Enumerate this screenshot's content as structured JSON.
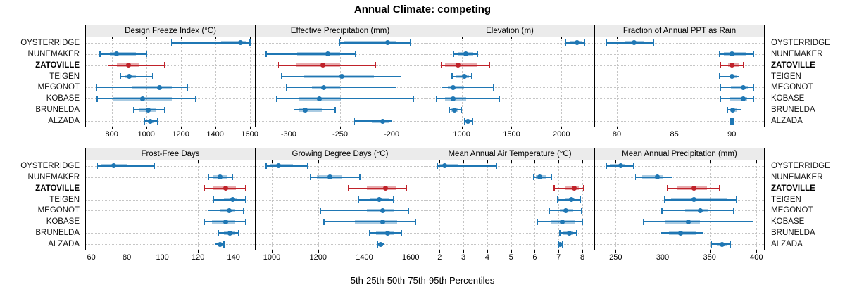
{
  "title": "Annual Climate: competing",
  "caption": "5th-25th-50th-75th-95th Percentiles",
  "highlight_site": "ZATOVILLE",
  "colors": {
    "series_blue": "#1F77B4",
    "series_red": "#C0222A",
    "band_opacity": 0.38,
    "grid": "#C6C6C6",
    "strip_bg": "#EBEBEB",
    "border": "#000000",
    "background": "#FFFFFF"
  },
  "chart_data": {
    "type": "dotplot",
    "statistic": "percentiles [5th, 25th, 50th, 75th, 95th]",
    "legend_position": "none",
    "grid": "dotted",
    "categories": [
      "OYSTERRIDGE",
      "NUNEMAKER",
      "ZATOVILLE",
      "TEIGEN",
      "MEGONOT",
      "KOBASE",
      "BRUNELDA",
      "ALZADA"
    ],
    "panels": [
      {
        "title": "Design Freeze Index (°C)",
        "row": 0,
        "col": 0,
        "xlim": [
          650,
          1630
        ],
        "ticks": [
          800,
          1000,
          1200,
          1400,
          1600
        ],
        "series": [
          {
            "site": "OYSTERRIDGE",
            "values": [
              1145,
              1435,
              1545,
              1580,
              1600
            ]
          },
          {
            "site": "NUNEMAKER",
            "values": [
              730,
              790,
              828,
              940,
              1000
            ]
          },
          {
            "site": "ZATOVILLE",
            "values": [
              777,
              831,
              898,
              961,
              1106
            ]
          },
          {
            "site": "TEIGEN",
            "values": [
              850,
              875,
              900,
              940,
              1035
            ]
          },
          {
            "site": "MEGONOT",
            "values": [
              710,
              920,
              1075,
              1150,
              1240
            ]
          },
          {
            "site": "KOBASE",
            "values": [
              715,
              810,
              980,
              1150,
              1285
            ]
          },
          {
            "site": "BRUNELDA",
            "values": [
              925,
              960,
              1010,
              1060,
              1105
            ]
          },
          {
            "site": "ALZADA",
            "values": [
              990,
              1010,
              1025,
              1040,
              1065
            ]
          }
        ]
      },
      {
        "title": "Effective Precipitation (mm)",
        "row": 0,
        "col": 1,
        "xlim": [
          -332,
          -168
        ],
        "ticks": [
          -300,
          -250,
          -200
        ],
        "series": [
          {
            "site": "OYSTERRIDGE",
            "values": [
              -251,
              -246,
              -204,
              -196,
              -182
            ]
          },
          {
            "site": "NUNEMAKER",
            "values": [
              -322,
              -292,
              -262,
              -250,
              -235
            ]
          },
          {
            "site": "ZATOVILLE",
            "values": [
              -310,
              -293,
              -267,
              -250,
              -216
            ]
          },
          {
            "site": "TEIGEN",
            "values": [
              -307,
              -285,
              -248,
              -217,
              -191
            ]
          },
          {
            "site": "MEGONOT",
            "values": [
              -302,
              -277,
              -266,
              -250,
              -196
            ]
          },
          {
            "site": "KOBASE",
            "values": [
              -312,
              -290,
              -270,
              -249,
              -179
            ]
          },
          {
            "site": "BRUNELDA",
            "values": [
              -295,
              -290,
              -284,
              -268,
              -255
            ]
          },
          {
            "site": "ALZADA",
            "values": [
              -236,
              -219,
              -209,
              -203,
              -200
            ]
          }
        ]
      },
      {
        "title": "Elevation (m)",
        "row": 0,
        "col": 2,
        "xlim": [
          635,
          2330
        ],
        "ticks": [
          1000,
          1500,
          2000
        ],
        "series": [
          {
            "site": "OYSTERRIDGE",
            "values": [
              2040,
              2080,
              2160,
              2210,
              2230
            ]
          },
          {
            "site": "NUNEMAKER",
            "values": [
              915,
              965,
              1040,
              1115,
              1160
            ]
          },
          {
            "site": "ZATOVILLE",
            "values": [
              795,
              835,
              965,
              1150,
              1275
            ]
          },
          {
            "site": "TEIGEN",
            "values": [
              900,
              940,
              1030,
              1070,
              1100
            ]
          },
          {
            "site": "MEGONOT",
            "values": [
              800,
              860,
              915,
              1025,
              1315
            ]
          },
          {
            "site": "KOBASE",
            "values": [
              745,
              835,
              915,
              1045,
              1380
            ]
          },
          {
            "site": "BRUNELDA",
            "values": [
              875,
              895,
              925,
              965,
              995
            ]
          },
          {
            "site": "ALZADA",
            "values": [
              1030,
              1045,
              1065,
              1090,
              1105
            ]
          }
        ]
      },
      {
        "title": "Fraction of Annual PPT as Rain",
        "row": 0,
        "col": 3,
        "xlim": [
          78.1,
          92.8
        ],
        "ticks": [
          80,
          85,
          90
        ],
        "series": [
          {
            "site": "OYSTERRIDGE",
            "values": [
              79.1,
              80.7,
              81.5,
              82.4,
              83.2
            ]
          },
          {
            "site": "NUNEMAKER",
            "values": [
              88.9,
              89.3,
              90.0,
              91.3,
              91.9
            ]
          },
          {
            "site": "ZATOVILLE",
            "values": [
              89.0,
              89.7,
              90.0,
              90.6,
              91.0
            ]
          },
          {
            "site": "TEIGEN",
            "values": [
              88.9,
              89.8,
              90.0,
              90.4,
              90.6
            ]
          },
          {
            "site": "MEGONOT",
            "values": [
              89.0,
              89.9,
              91.0,
              91.4,
              91.9
            ]
          },
          {
            "site": "KOBASE",
            "values": [
              89.0,
              89.8,
              91.0,
              91.3,
              91.9
            ]
          },
          {
            "site": "BRUNELDA",
            "values": [
              89.6,
              89.9,
              90.1,
              90.5,
              90.8
            ]
          },
          {
            "site": "ALZADA",
            "values": [
              89.9,
              90.0,
              90.0,
              90.1,
              90.1
            ]
          }
        ]
      },
      {
        "title": "Frost-Free Days",
        "row": 1,
        "col": 0,
        "xlim": [
          57,
          152
        ],
        "ticks": [
          60,
          80,
          100,
          120,
          140
        ],
        "series": [
          {
            "site": "OYSTERRIDGE",
            "values": [
              63.5,
              65.5,
              72.5,
              80,
              95.5
            ]
          },
          {
            "site": "NUNEMAKER",
            "values": [
              126,
              128.5,
              132.5,
              136,
              139.5
            ]
          },
          {
            "site": "ZATOVILLE",
            "values": [
              123.5,
              128.5,
              135.5,
              141.5,
              146.5
            ]
          },
          {
            "site": "TEIGEN",
            "values": [
              128.5,
              134.5,
              139.5,
              142,
              146.5
            ]
          },
          {
            "site": "MEGONOT",
            "values": [
              125.5,
              132.5,
              137.5,
              141,
              145.5
            ]
          },
          {
            "site": "KOBASE",
            "values": [
              123.5,
              128,
              135.5,
              141,
              146.5
            ]
          },
          {
            "site": "BRUNELDA",
            "values": [
              131.5,
              134.5,
              138,
              141,
              142.5
            ]
          },
          {
            "site": "ALZADA",
            "values": [
              129.5,
              131,
              132.5,
              133.5,
              134.5
            ]
          }
        ]
      },
      {
        "title": "Growing Degree Days (°C)",
        "row": 1,
        "col": 1,
        "xlim": [
          930,
          1660
        ],
        "ticks": [
          1000,
          1200,
          1400,
          1600
        ],
        "series": [
          {
            "site": "OYSTERRIDGE",
            "values": [
              975,
              990,
              1030,
              1090,
              1155
            ]
          },
          {
            "site": "NUNEMAKER",
            "values": [
              1165,
              1195,
              1250,
              1300,
              1380
            ]
          },
          {
            "site": "ZATOVILLE",
            "values": [
              1330,
              1410,
              1490,
              1535,
              1580
            ]
          },
          {
            "site": "TEIGEN",
            "values": [
              1375,
              1425,
              1465,
              1505,
              1525
            ]
          },
          {
            "site": "MEGONOT",
            "values": [
              1210,
              1410,
              1480,
              1530,
              1590
            ]
          },
          {
            "site": "KOBASE",
            "values": [
              1225,
              1360,
              1480,
              1540,
              1620
            ]
          },
          {
            "site": "BRUNELDA",
            "values": [
              1420,
              1450,
              1500,
              1530,
              1560
            ]
          },
          {
            "site": "ALZADA",
            "values": [
              1455,
              1465,
              1470,
              1478,
              1485
            ]
          }
        ]
      },
      {
        "title": "Mean Annual Air Temperature (°C)",
        "row": 1,
        "col": 2,
        "xlim": [
          1.4,
          8.5
        ],
        "ticks": [
          2,
          3,
          4,
          5,
          6,
          7,
          8
        ],
        "series": [
          {
            "site": "OYSTERRIDGE",
            "values": [
              1.9,
              2.0,
              2.2,
              2.75,
              4.4
            ]
          },
          {
            "site": "NUNEMAKER",
            "values": [
              5.95,
              6.05,
              6.2,
              6.5,
              6.7
            ]
          },
          {
            "site": "ZATOVILLE",
            "values": [
              6.8,
              7.3,
              7.65,
              7.85,
              8.05
            ]
          },
          {
            "site": "TEIGEN",
            "values": [
              6.95,
              7.25,
              7.55,
              7.7,
              7.9
            ]
          },
          {
            "site": "MEGONOT",
            "values": [
              6.6,
              7.05,
              7.3,
              7.6,
              7.95
            ]
          },
          {
            "site": "KOBASE",
            "values": [
              6.1,
              6.7,
              7.15,
              7.7,
              8.0
            ]
          },
          {
            "site": "BRUNELDA",
            "values": [
              7.05,
              7.2,
              7.45,
              7.6,
              7.75
            ]
          },
          {
            "site": "ALZADA",
            "values": [
              7.0,
              7.03,
              7.07,
              7.12,
              7.15
            ]
          }
        ]
      },
      {
        "title": "Mean Annual Precipitation (mm)",
        "row": 1,
        "col": 3,
        "xlim": [
          228,
          408
        ],
        "ticks": [
          250,
          300,
          350,
          400
        ],
        "series": [
          {
            "site": "OYSTERRIDGE",
            "values": [
              240,
              244,
              255,
              260,
              269
            ]
          },
          {
            "site": "NUNEMAKER",
            "values": [
              271,
              278,
              294,
              301,
              310
            ]
          },
          {
            "site": "ZATOVILLE",
            "values": [
              305,
              315,
              333,
              347,
              360
            ]
          },
          {
            "site": "TEIGEN",
            "values": [
              302,
              309,
              333,
              368,
              378
            ]
          },
          {
            "site": "MEGONOT",
            "values": [
              299,
              324,
              340,
              348,
              375
            ]
          },
          {
            "site": "KOBASE",
            "values": [
              279,
              302,
              327,
              340,
              396
            ]
          },
          {
            "site": "BRUNELDA",
            "values": [
              298,
              307,
              319,
              335,
              343
            ]
          },
          {
            "site": "ALZADA",
            "values": [
              352,
              358,
              363,
              368,
              372
            ]
          }
        ]
      }
    ]
  }
}
